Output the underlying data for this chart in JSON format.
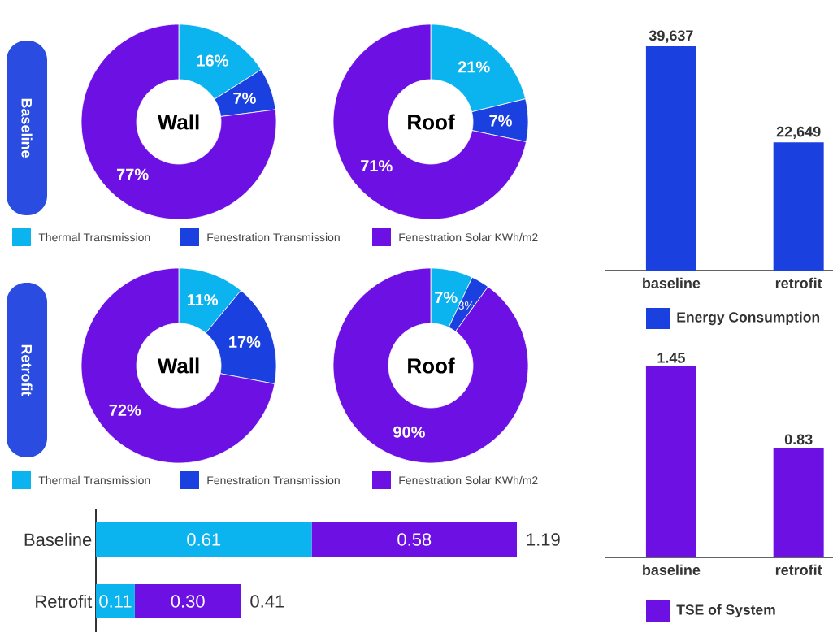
{
  "chart_data": [
    {
      "type": "donut",
      "title": "Wall",
      "annotations": [
        "Baseline"
      ],
      "categories": [
        "Thermal Transmission",
        "Fenestration Transmission",
        "Fenestration Solar KWh/m2"
      ],
      "values": [
        16,
        7,
        77
      ],
      "value_labels": [
        "16%",
        "7%",
        "77%"
      ],
      "colors": [
        "#0bb4ee",
        "#1a40e0",
        "#6c10e4"
      ],
      "legend": "bottom"
    },
    {
      "type": "donut",
      "title": "Roof",
      "values": [
        21,
        7,
        71
      ],
      "value_labels": [
        "21%",
        "7%",
        "71%"
      ],
      "colors": [
        "#0bb4ee",
        "#1a40e0",
        "#6c10e4"
      ]
    },
    {
      "type": "donut",
      "title": "Wall",
      "annotations": [
        "Retrofit"
      ],
      "categories": [
        "Thermal Transmission",
        "Fenestration Transmission",
        "Fenestration Solar KWh/m2"
      ],
      "values": [
        11,
        17,
        72
      ],
      "value_labels": [
        "11%",
        "17%",
        "72%"
      ],
      "colors": [
        "#0bb4ee",
        "#1a40e0",
        "#6c10e4"
      ],
      "legend": "bottom"
    },
    {
      "type": "donut",
      "title": "Roof",
      "values": [
        7,
        3,
        90
      ],
      "value_labels": [
        "7%",
        "3%",
        "90%"
      ],
      "colors": [
        "#0bb4ee",
        "#1a40e0",
        "#6c10e4"
      ]
    },
    {
      "type": "bar",
      "orientation": "horizontal",
      "stacked": true,
      "categories": [
        "Baseline",
        "Retrofit"
      ],
      "series": [
        {
          "color": "#0bb4ee",
          "values": [
            0.61,
            0.11
          ],
          "value_labels": [
            "0.61",
            "0.11"
          ]
        },
        {
          "color": "#6c10e4",
          "values": [
            0.58,
            0.3
          ],
          "value_labels": [
            "0.58",
            "0.30"
          ]
        }
      ],
      "totals": [
        "1.19",
        "0.41"
      ]
    },
    {
      "type": "bar",
      "categories": [
        "baseline",
        "retrofit"
      ],
      "series": [
        {
          "name": "Energy Consumption",
          "color": "#1a40e0",
          "values": [
            39637,
            22649
          ],
          "value_labels": [
            "39,637",
            "22,649"
          ]
        }
      ],
      "legend": "bottom"
    },
    {
      "type": "bar",
      "categories": [
        "baseline",
        "retrofit"
      ],
      "series": [
        {
          "name": "TSE of System",
          "color": "#6c10e4",
          "values": [
            1.45,
            0.83
          ]
        }
      ],
      "legend": "bottom",
      "data_labels": true
    }
  ]
}
